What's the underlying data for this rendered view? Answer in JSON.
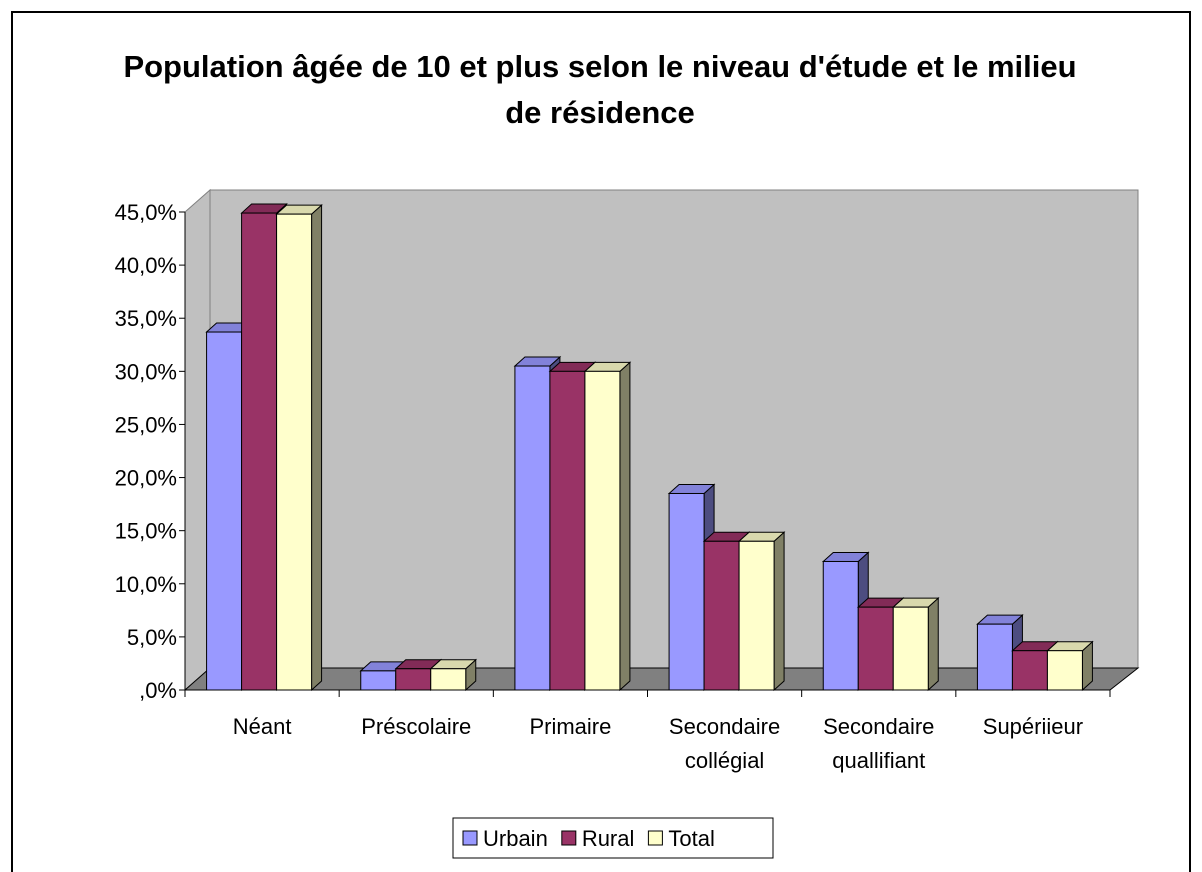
{
  "chart_data": {
    "type": "bar3d",
    "title": "Population âgée de 10 et plus selon le niveau d'étude et le milieu de résidence",
    "categories": [
      "Néant",
      "Préscolaire",
      "Primaire",
      "Secondaire\ncollégial",
      "Secondaire\nquallifiant",
      "Supériieur"
    ],
    "series": [
      {
        "name": "Urbain",
        "color": "#9999ff",
        "values": [
          33.7,
          1.8,
          30.5,
          18.5,
          12.1,
          6.2
        ]
      },
      {
        "name": "Rural",
        "color": "#993366",
        "values": [
          44.9,
          2.0,
          30.0,
          14.0,
          7.8,
          3.7
        ]
      },
      {
        "name": "Total",
        "color": "#ffffcc",
        "values": [
          44.8,
          2.0,
          30.0,
          14.0,
          7.8,
          3.7
        ]
      }
    ],
    "ylim": [
      0,
      45
    ],
    "yticks": [
      {
        "value": 0,
        "label": ",0%"
      },
      {
        "value": 5,
        "label": "5,0%"
      },
      {
        "value": 10,
        "label": "10,0%"
      },
      {
        "value": 15,
        "label": "15,0%"
      },
      {
        "value": 20,
        "label": "20,0%"
      },
      {
        "value": 25,
        "label": "25,0%"
      },
      {
        "value": 30,
        "label": "30,0%"
      },
      {
        "value": 35,
        "label": "35,0%"
      },
      {
        "value": 40,
        "label": "40,0%"
      },
      {
        "value": 45,
        "label": "45,0%"
      }
    ],
    "legend": "bottom"
  }
}
